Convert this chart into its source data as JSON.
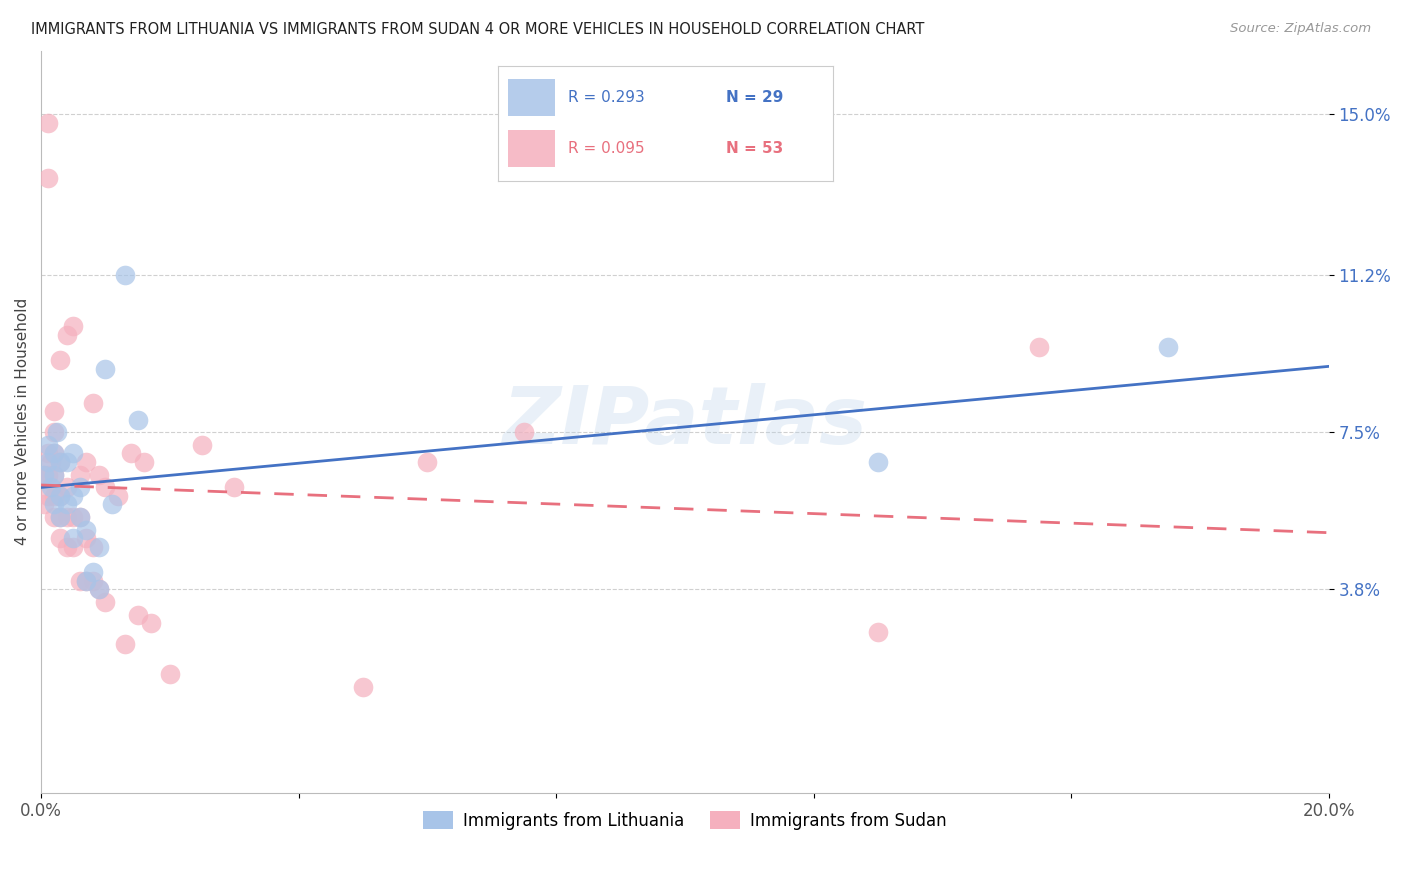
{
  "title": "IMMIGRANTS FROM LITHUANIA VS IMMIGRANTS FROM SUDAN 4 OR MORE VEHICLES IN HOUSEHOLD CORRELATION CHART",
  "source": "Source: ZipAtlas.com",
  "ylabel": "4 or more Vehicles in Household",
  "xlim": [
    0.0,
    0.2
  ],
  "ylim": [
    -0.01,
    0.165
  ],
  "yticks": [
    0.038,
    0.075,
    0.112,
    0.15
  ],
  "ytick_labels": [
    "3.8%",
    "7.5%",
    "11.2%",
    "15.0%"
  ],
  "xticks": [
    0.0,
    0.04,
    0.08,
    0.12,
    0.16,
    0.2
  ],
  "xtick_labels": [
    "0.0%",
    "",
    "",
    "",
    "",
    "20.0%"
  ],
  "color_lithuania": "#a8c4e8",
  "color_sudan": "#f5b0be",
  "line_color_lithuania": "#4472c4",
  "line_color_sudan": "#e8707e",
  "background_color": "#ffffff",
  "watermark": "ZIPatlas",
  "lithuania_x": [
    0.0005,
    0.001,
    0.001,
    0.0015,
    0.002,
    0.002,
    0.002,
    0.0025,
    0.003,
    0.003,
    0.003,
    0.004,
    0.004,
    0.005,
    0.005,
    0.005,
    0.006,
    0.006,
    0.007,
    0.007,
    0.008,
    0.009,
    0.009,
    0.01,
    0.011,
    0.013,
    0.015,
    0.13,
    0.175
  ],
  "lithuania_y": [
    0.065,
    0.068,
    0.072,
    0.062,
    0.058,
    0.065,
    0.07,
    0.075,
    0.055,
    0.06,
    0.068,
    0.058,
    0.068,
    0.05,
    0.06,
    0.07,
    0.055,
    0.062,
    0.04,
    0.052,
    0.042,
    0.038,
    0.048,
    0.09,
    0.058,
    0.112,
    0.078,
    0.068,
    0.095
  ],
  "sudan_x": [
    0.0003,
    0.0005,
    0.001,
    0.001,
    0.001,
    0.001,
    0.001,
    0.0015,
    0.002,
    0.002,
    0.002,
    0.002,
    0.002,
    0.002,
    0.003,
    0.003,
    0.003,
    0.003,
    0.003,
    0.004,
    0.004,
    0.004,
    0.004,
    0.005,
    0.005,
    0.005,
    0.006,
    0.006,
    0.006,
    0.007,
    0.007,
    0.007,
    0.008,
    0.008,
    0.008,
    0.009,
    0.009,
    0.01,
    0.01,
    0.012,
    0.013,
    0.014,
    0.015,
    0.016,
    0.017,
    0.02,
    0.025,
    0.03,
    0.05,
    0.06,
    0.075,
    0.13,
    0.155
  ],
  "sudan_y": [
    0.065,
    0.058,
    0.06,
    0.065,
    0.07,
    0.135,
    0.148,
    0.068,
    0.055,
    0.06,
    0.065,
    0.07,
    0.075,
    0.08,
    0.05,
    0.055,
    0.06,
    0.068,
    0.092,
    0.048,
    0.055,
    0.062,
    0.098,
    0.048,
    0.055,
    0.1,
    0.04,
    0.055,
    0.065,
    0.04,
    0.05,
    0.068,
    0.04,
    0.048,
    0.082,
    0.038,
    0.065,
    0.035,
    0.062,
    0.06,
    0.025,
    0.07,
    0.032,
    0.068,
    0.03,
    0.018,
    0.072,
    0.062,
    0.015,
    0.068,
    0.075,
    0.028,
    0.095
  ]
}
